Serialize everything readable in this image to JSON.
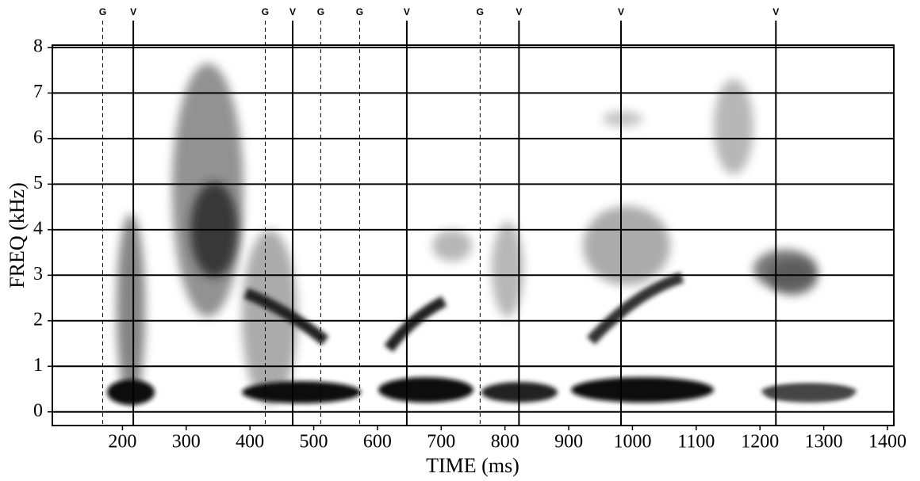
{
  "chart_data": {
    "type": "spectrogram",
    "xlabel": "TIME (ms)",
    "ylabel": "FREQ (kHz)",
    "xlim": [
      90,
      1410
    ],
    "xticks": [
      200,
      300,
      400,
      500,
      600,
      700,
      800,
      900,
      1000,
      1100,
      1200,
      1300,
      1400
    ],
    "ylim": [
      -0.3,
      8.05
    ],
    "yticks": [
      0,
      1,
      2,
      3,
      4,
      5,
      6,
      7,
      8
    ],
    "grid": true,
    "markers": [
      {
        "label": "G",
        "x": 169,
        "style": "dashed"
      },
      {
        "label": "V",
        "x": 217,
        "style": "solid"
      },
      {
        "label": "G",
        "x": 424,
        "style": "dashed"
      },
      {
        "label": "V",
        "x": 467,
        "style": "solid"
      },
      {
        "label": "G",
        "x": 511,
        "style": "dashed"
      },
      {
        "label": "G",
        "x": 572,
        "style": "dashed"
      },
      {
        "label": "V",
        "x": 646,
        "style": "solid"
      },
      {
        "label": "G",
        "x": 761,
        "style": "dashed"
      },
      {
        "label": "V",
        "x": 822,
        "style": "solid"
      },
      {
        "label": "V",
        "x": 982,
        "style": "solid"
      },
      {
        "label": "V",
        "x": 1225,
        "style": "solid"
      }
    ]
  }
}
